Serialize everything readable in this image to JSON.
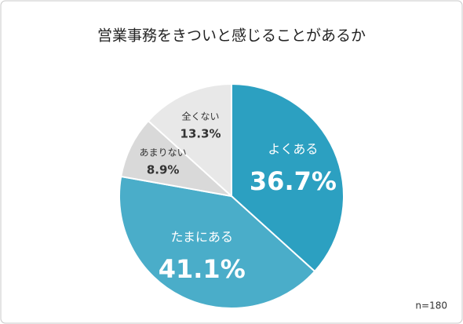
{
  "chart_data": {
    "type": "pie",
    "title": "営業事務をきついと感じることがあるか",
    "categories": [
      "よくある",
      "たまにある",
      "あまりない",
      "全くない"
    ],
    "values": [
      36.7,
      41.1,
      8.9,
      13.3
    ],
    "value_labels": [
      "36.7%",
      "41.1%",
      "8.9%",
      "13.3%"
    ],
    "colors": [
      "#2ca0c1",
      "#4aadc9",
      "#d9d9d9",
      "#e8e8e8"
    ],
    "label_colors": [
      "#ffffff",
      "#ffffff",
      "#333333",
      "#333333"
    ],
    "note": "n=180"
  }
}
